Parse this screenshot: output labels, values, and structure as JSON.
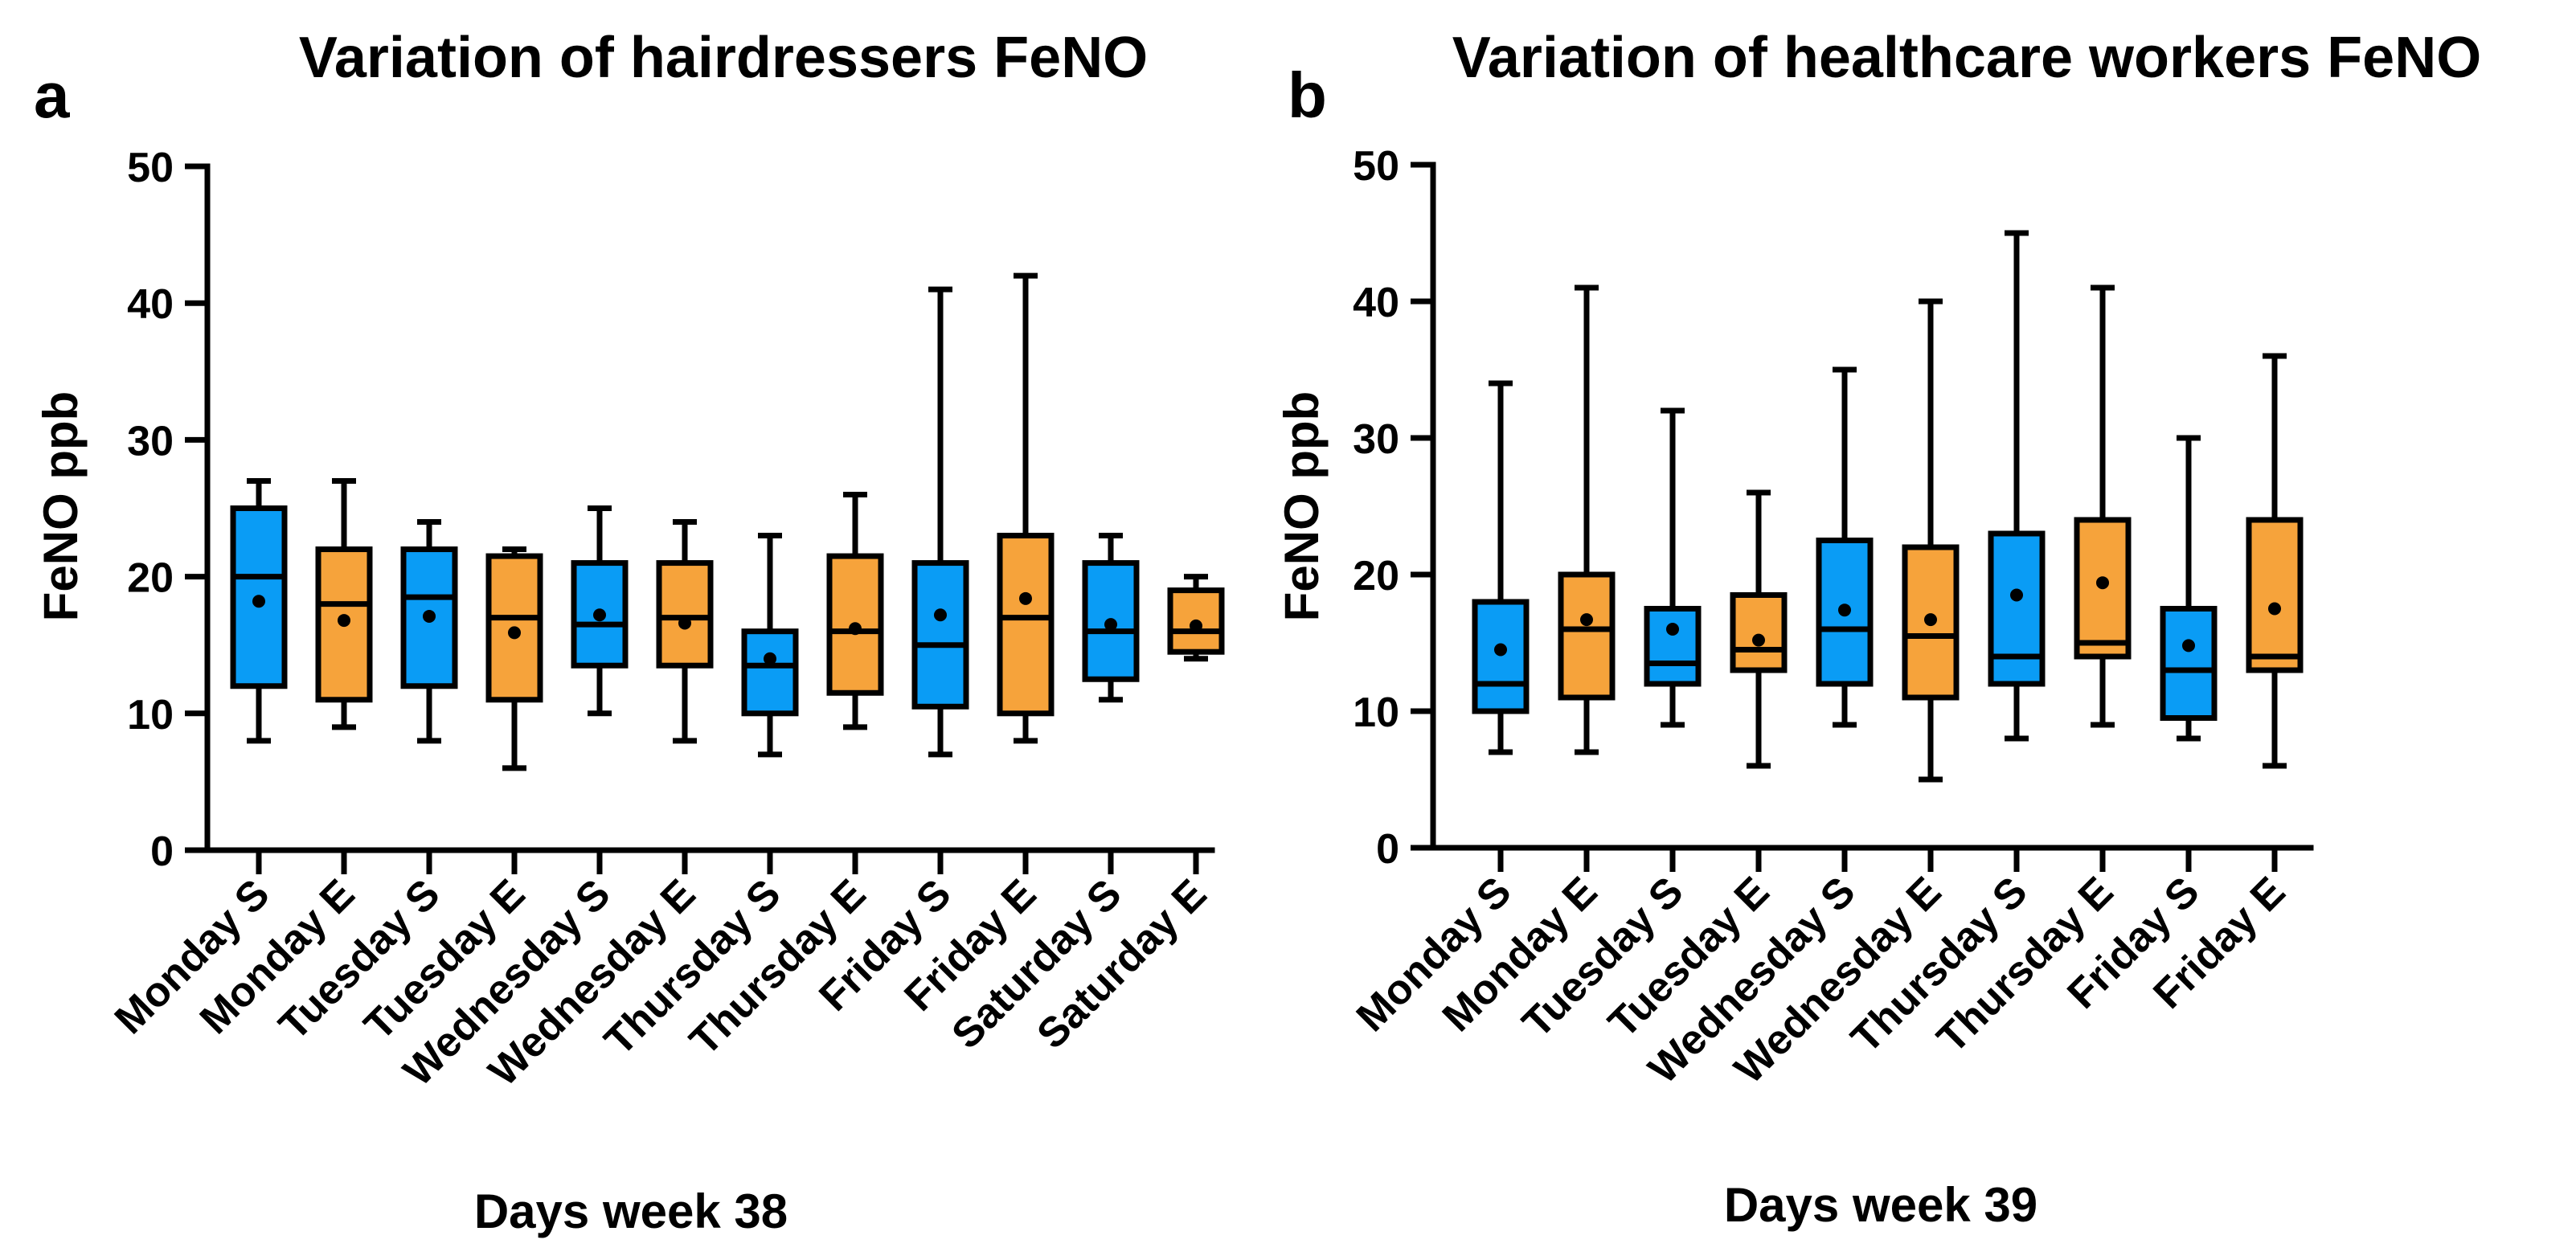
{
  "colors": {
    "start": "#0A9CF5",
    "end": "#F6A33B",
    "ink": "#000000"
  },
  "chart_data": [
    {
      "panel": "a",
      "type": "boxplot",
      "title": "Variation of hairdressers FeNO",
      "xlabel": "Days week 38",
      "ylabel": "FeNO ppb",
      "ylim": [
        0,
        50
      ],
      "yticks": [
        0,
        10,
        20,
        30,
        40,
        50
      ],
      "categories": [
        "Monday S",
        "Monday E",
        "Tuesday S",
        "Tuesday E",
        "Wednesday S",
        "Wednesday E",
        "Thursday S",
        "Thursday E",
        "Friday S",
        "Friday E",
        "Saturday S",
        "Saturday E"
      ],
      "groups": [
        "S",
        "E",
        "S",
        "E",
        "S",
        "E",
        "S",
        "E",
        "S",
        "E",
        "S",
        "E"
      ],
      "boxes": [
        {
          "min": 8,
          "q1": 12,
          "median": 20,
          "q3": 25,
          "max": 27,
          "mean": 18.2
        },
        {
          "min": 9,
          "q1": 11,
          "median": 18,
          "q3": 22,
          "max": 27,
          "mean": 16.8
        },
        {
          "min": 8,
          "q1": 12,
          "median": 18.5,
          "q3": 22,
          "max": 24,
          "mean": 17.1
        },
        {
          "min": 6,
          "q1": 11,
          "median": 17,
          "q3": 21.5,
          "max": 22,
          "mean": 15.9
        },
        {
          "min": 10,
          "q1": 13.5,
          "median": 16.5,
          "q3": 21,
          "max": 25,
          "mean": 17.2
        },
        {
          "min": 8,
          "q1": 13.5,
          "median": 17,
          "q3": 21,
          "max": 24,
          "mean": 16.6
        },
        {
          "min": 7,
          "q1": 10,
          "median": 13.5,
          "q3": 16,
          "max": 23,
          "mean": 14
        },
        {
          "min": 9,
          "q1": 11.5,
          "median": 16,
          "q3": 21.5,
          "max": 26,
          "mean": 16.2
        },
        {
          "min": 7,
          "q1": 10.5,
          "median": 15,
          "q3": 21,
          "max": 41,
          "mean": 17.2
        },
        {
          "min": 8,
          "q1": 10,
          "median": 17,
          "q3": 23,
          "max": 42,
          "mean": 18.4
        },
        {
          "min": 11,
          "q1": 12.5,
          "median": 16,
          "q3": 21,
          "max": 23,
          "mean": 16.5
        },
        {
          "min": 14,
          "q1": 14.5,
          "median": 16,
          "q3": 19,
          "max": 20,
          "mean": 16.4
        }
      ]
    },
    {
      "panel": "b",
      "type": "boxplot",
      "title": "Variation of healthcare workers FeNO",
      "xlabel": "Days week 39",
      "ylabel": "FeNO ppb",
      "ylim": [
        0,
        50
      ],
      "yticks": [
        0,
        10,
        20,
        30,
        40,
        50
      ],
      "categories": [
        "Monday S",
        "Monday E",
        "Tuesday S",
        "Tuesday E",
        "Wednesday S",
        "Wednesday E",
        "Thursday S",
        "Thursday E",
        "Friday S",
        "Friday E"
      ],
      "groups": [
        "S",
        "E",
        "S",
        "E",
        "S",
        "E",
        "S",
        "E",
        "S",
        "E"
      ],
      "boxes": [
        {
          "min": 7,
          "q1": 10,
          "median": 12,
          "q3": 18,
          "max": 34,
          "mean": 14.5
        },
        {
          "min": 7,
          "q1": 11,
          "median": 16,
          "q3": 20,
          "max": 41,
          "mean": 16.7
        },
        {
          "min": 9,
          "q1": 12,
          "median": 13.5,
          "q3": 17.5,
          "max": 32,
          "mean": 16
        },
        {
          "min": 6,
          "q1": 13,
          "median": 14.5,
          "q3": 18.5,
          "max": 26,
          "mean": 15.2
        },
        {
          "min": 9,
          "q1": 12,
          "median": 16,
          "q3": 22.5,
          "max": 35,
          "mean": 17.4
        },
        {
          "min": 5,
          "q1": 11,
          "median": 15.5,
          "q3": 22,
          "max": 40,
          "mean": 16.7
        },
        {
          "min": 8,
          "q1": 12,
          "median": 14,
          "q3": 23,
          "max": 45,
          "mean": 18.5
        },
        {
          "min": 9,
          "q1": 14,
          "median": 15,
          "q3": 24,
          "max": 41,
          "mean": 19.4
        },
        {
          "min": 8,
          "q1": 9.5,
          "median": 13,
          "q3": 17.5,
          "max": 30,
          "mean": 14.8
        },
        {
          "min": 6,
          "q1": 13,
          "median": 14,
          "q3": 24,
          "max": 36,
          "mean": 17.5
        }
      ]
    }
  ]
}
